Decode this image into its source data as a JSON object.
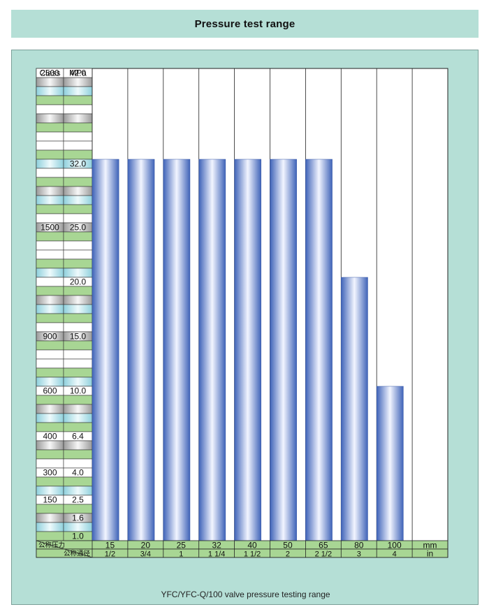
{
  "header": {
    "title": "Pressure test range"
  },
  "caption": "YFC/YFC-Q/100 valve pressure testing range",
  "scale_headers": {
    "class": "Class",
    "mpa": "MPa"
  },
  "scale_labels": [
    {
      "class": "2500",
      "mpa": "42.0",
      "row": 0
    },
    {
      "class": "",
      "mpa": "32.0",
      "row": 10
    },
    {
      "class": "1500",
      "mpa": "25.0",
      "row": 17
    },
    {
      "class": "",
      "mpa": "20.0",
      "row": 23
    },
    {
      "class": "900",
      "mpa": "15.0",
      "row": 29
    },
    {
      "class": "600",
      "mpa": "10.0",
      "row": 35
    },
    {
      "class": "400",
      "mpa": "6.4",
      "row": 40
    },
    {
      "class": "300",
      "mpa": "4.0",
      "row": 44
    },
    {
      "class": "150",
      "mpa": "2.5",
      "row": 47
    },
    {
      "class": "",
      "mpa": "1.6",
      "row": 49
    },
    {
      "class": "",
      "mpa": "1.0",
      "row": 51
    }
  ],
  "footer_labels": {
    "pressure": "公称压力",
    "diameter": "公称通径",
    "unit_mm": "mm",
    "unit_in": "in"
  },
  "colors": {
    "panel": "#b5dfd6",
    "bar": "#4a6fc0",
    "bar_highlight": "#f2f5ff",
    "green_row": "#a8d694",
    "teal_row": "#b9e3ec"
  },
  "chart_data": {
    "type": "bar",
    "title": "Pressure test range",
    "categories_mm": [
      "15",
      "20",
      "25",
      "32",
      "40",
      "50",
      "65",
      "80",
      "100"
    ],
    "categories_in": [
      "1/2",
      "3/4",
      "1",
      "1 1/4",
      "1 1/2",
      "2",
      "2 1/2",
      "3",
      "4"
    ],
    "series": [
      {
        "values": [
          32.0,
          32.0,
          32.0,
          32.0,
          32.0,
          32.0,
          32.0,
          20.0,
          10.0
        ]
      }
    ],
    "ylabel": "MPa",
    "ylim": [
      1.0,
      42.0
    ],
    "y_ticks": [
      "42.0",
      "32.0",
      "25.0",
      "20.0",
      "15.0",
      "10.0",
      "6.4",
      "4.0",
      "2.5",
      "1.6",
      "1.0"
    ],
    "grid": true
  }
}
